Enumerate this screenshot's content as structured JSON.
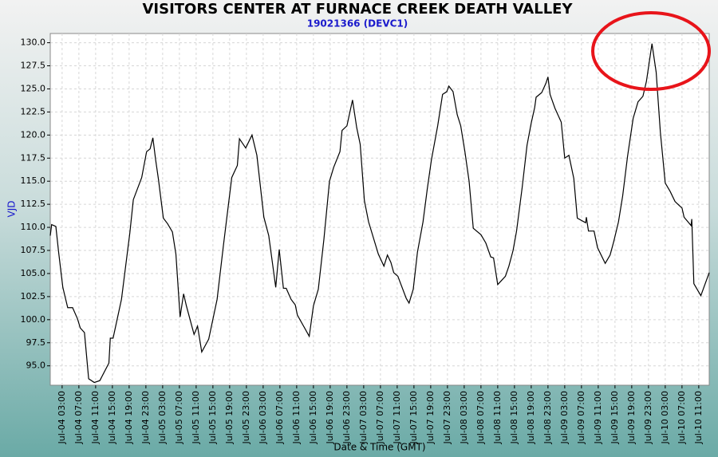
{
  "chart_data": {
    "type": "line",
    "title": "VISITORS CENTER AT FURNACE CREEK DEATH VALLEY",
    "subtitle": "19021366 (DEVC1)",
    "x_label": "Date & Time (GMT)",
    "y_label": "VJD",
    "grid": true,
    "xlim": [
      "Jul-04 00:10",
      "Jul-10 13:30"
    ],
    "ylim": [
      92.9,
      131.0
    ],
    "yticks": [
      {
        "value": 95,
        "label": "95.0"
      },
      97.5,
      {
        "value": 100,
        "label": "100.0"
      },
      102.5,
      {
        "value": 105,
        "label": "105.0"
      },
      107.5,
      {
        "value": 110,
        "label": "110.0"
      },
      112.5,
      {
        "value": 115,
        "label": "115.0"
      },
      117.5,
      {
        "value": 120,
        "label": "120.0"
      },
      122.5,
      {
        "value": 125,
        "label": "125.0"
      },
      127.5,
      {
        "value": 130,
        "label": "130.0"
      }
    ],
    "xticks": [
      "Jul-04 03:00",
      "Jul-04 07:00",
      "Jul-04 11:00",
      "Jul-04 15:00",
      "Jul-04 19:00",
      "Jul-04 23:00",
      "Jul-05 03:00",
      "Jul-05 07:00",
      "Jul-05 11:00",
      "Jul-05 15:00",
      "Jul-05 19:00",
      "Jul-05 23:00",
      "Jul-06 03:00",
      "Jul-06 07:00",
      "Jul-06 11:00",
      "Jul-06 15:00",
      "Jul-06 19:00",
      "Jul-06 23:00",
      "Jul-07 03:00",
      "Jul-07 07:00",
      "Jul-07 11:00",
      "Jul-07 15:00",
      "Jul-07 19:00",
      "Jul-07 23:00",
      "Jul-08 03:00",
      "Jul-08 07:00",
      "Jul-08 11:00",
      "Jul-08 15:00",
      "Jul-08 19:00",
      "Jul-08 23:00",
      "Jul-09 03:00",
      "Jul-09 07:00",
      "Jul-09 11:00",
      "Jul-09 15:00",
      "Jul-09 19:00",
      "Jul-09 23:00",
      "Jul-10 03:00",
      "Jul-10 07:00",
      "Jul-10 11:00"
    ],
    "x": [
      "Jul-04 00:10",
      "Jul-04 00:30",
      "Jul-04 01:30",
      "Jul-04 02:10",
      "Jul-04 03:10",
      "Jul-04 04:20",
      "Jul-04 05:30",
      "Jul-04 06:40",
      "Jul-04 07:20",
      "Jul-04 08:20",
      "Jul-04 09:20",
      "Jul-04 10:40",
      "Jul-04 12:00",
      "Jul-04 14:10",
      "Jul-04 14:30",
      "Jul-04 15:10",
      "Jul-04 17:10",
      "Jul-04 19:10",
      "Jul-04 20:00",
      "Jul-04 22:00",
      "Jul-04 23:10",
      "Jul-05 00:00",
      "Jul-05 00:40",
      "Jul-05 01:20",
      "Jul-05 02:00",
      "Jul-05 03:10",
      "Jul-05 04:10",
      "Jul-05 05:20",
      "Jul-05 06:10",
      "Jul-05 07:10",
      "Jul-05 08:00",
      "Jul-05 08:40",
      "Jul-05 10:30",
      "Jul-05 11:20",
      "Jul-05 12:20",
      "Jul-05 14:00",
      "Jul-05 16:00",
      "Jul-05 17:30",
      "Jul-05 19:30",
      "Jul-05 20:50",
      "Jul-05 21:20",
      "Jul-05 22:50",
      "Jul-06 00:20",
      "Jul-06 01:30",
      "Jul-06 03:10",
      "Jul-06 04:20",
      "Jul-06 06:00",
      "Jul-06 06:50",
      "Jul-06 07:50",
      "Jul-06 08:30",
      "Jul-06 09:40",
      "Jul-06 10:40",
      "Jul-06 11:10",
      "Jul-06 14:00",
      "Jul-06 15:00",
      "Jul-06 16:10",
      "Jul-06 17:30",
      "Jul-06 18:50",
      "Jul-06 19:50",
      "Jul-06 21:20",
      "Jul-06 21:50",
      "Jul-06 23:00",
      "Jul-07 00:20",
      "Jul-07 01:20",
      "Jul-07 02:10",
      "Jul-07 03:10",
      "Jul-07 04:10",
      "Jul-07 06:30",
      "Jul-07 07:50",
      "Jul-07 08:40",
      "Jul-07 09:30",
      "Jul-07 10:10",
      "Jul-07 11:10",
      "Jul-07 13:10",
      "Jul-07 13:50",
      "Jul-07 14:50",
      "Jul-07 15:50",
      "Jul-07 17:10",
      "Jul-07 18:10",
      "Jul-07 19:10",
      "Jul-07 20:40",
      "Jul-07 21:50",
      "Jul-07 22:50",
      "Jul-07 23:20",
      "Jul-08 00:20",
      "Jul-08 01:20",
      "Jul-08 02:10",
      "Jul-08 03:10",
      "Jul-08 04:10",
      "Jul-08 05:10",
      "Jul-08 07:00",
      "Jul-08 08:10",
      "Jul-08 09:20",
      "Jul-08 10:00",
      "Jul-08 11:00",
      "Jul-08 12:50",
      "Jul-08 13:40",
      "Jul-08 14:40",
      "Jul-08 15:30",
      "Jul-08 16:50",
      "Jul-08 18:00",
      "Jul-08 19:00",
      "Jul-08 19:50",
      "Jul-08 20:10",
      "Jul-08 21:30",
      "Jul-08 22:30",
      "Jul-08 23:00",
      "Jul-08 23:30",
      "Jul-09 00:40",
      "Jul-09 02:10",
      "Jul-09 03:00",
      "Jul-09 04:00",
      "Jul-09 05:10",
      "Jul-09 06:00",
      "Jul-09 08:00",
      "Jul-09 08:10",
      "Jul-09 08:40",
      "Jul-09 10:00",
      "Jul-09 10:50",
      "Jul-09 12:40",
      "Jul-09 13:50",
      "Jul-09 14:40",
      "Jul-09 15:50",
      "Jul-09 16:50",
      "Jul-09 18:00",
      "Jul-09 19:20",
      "Jul-09 20:30",
      "Jul-09 21:40",
      "Jul-09 22:30",
      "Jul-09 23:50",
      "Jul-10 00:50",
      "Jul-10 01:50",
      "Jul-10 03:00",
      "Jul-10 04:10",
      "Jul-10 05:20",
      "Jul-10 06:30",
      "Jul-10 07:00",
      "Jul-10 07:30",
      "Jul-10 09:10",
      "Jul-10 09:20",
      "Jul-10 09:50",
      "Jul-10 11:30",
      "Jul-10 13:30"
    ],
    "series": [
      {
        "color": "#000000",
        "values": [
          109.1,
          110.3,
          110.1,
          107.3,
          103.5,
          101.3,
          101.3,
          100.1,
          99.1,
          98.6,
          93.6,
          93.2,
          93.4,
          95.3,
          98.0,
          98.0,
          102.2,
          109.4,
          113.0,
          115.4,
          118.2,
          118.5,
          119.7,
          117.3,
          115.2,
          111.0,
          110.4,
          109.5,
          107.1,
          100.3,
          102.8,
          101.5,
          98.4,
          99.3,
          96.5,
          97.9,
          102.2,
          108.0,
          115.4,
          116.7,
          119.6,
          118.6,
          120.0,
          117.8,
          111.1,
          109.1,
          103.5,
          107.6,
          103.4,
          103.4,
          102.2,
          101.6,
          100.5,
          98.2,
          101.5,
          103.3,
          108.7,
          115.0,
          116.5,
          118.2,
          120.5,
          121.0,
          123.8,
          120.8,
          119.0,
          112.9,
          110.6,
          107.1,
          105.8,
          107.0,
          106.2,
          105.1,
          104.7,
          102.3,
          101.8,
          103.3,
          107.3,
          110.6,
          114.1,
          117.3,
          121.0,
          124.4,
          124.7,
          125.3,
          124.7,
          122.2,
          121.0,
          118.2,
          115.0,
          109.9,
          109.2,
          108.3,
          106.8,
          106.7,
          103.8,
          104.7,
          105.8,
          107.5,
          109.6,
          114.3,
          118.9,
          121.3,
          123.0,
          124.1,
          124.6,
          125.6,
          126.3,
          124.4,
          122.9,
          121.4,
          117.5,
          117.8,
          115.3,
          111.0,
          110.5,
          111.1,
          109.6,
          109.6,
          107.8,
          106.1,
          107.0,
          108.4,
          110.6,
          113.4,
          117.7,
          121.8,
          123.6,
          124.2,
          125.8,
          129.9,
          126.8,
          120.3,
          114.8,
          113.9,
          112.8,
          112.3,
          112.1,
          111.1,
          110.2,
          110.9,
          103.9,
          102.6,
          105.1
        ]
      }
    ]
  }
}
